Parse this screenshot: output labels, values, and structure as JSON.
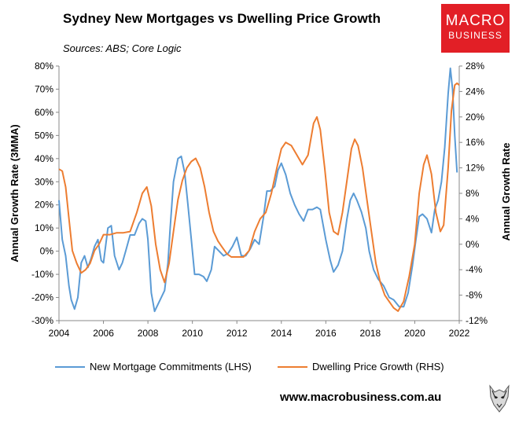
{
  "header": {
    "title": "Sydney New Mortgages vs Dwelling Price Growth",
    "subtitle": "Sources: ABS; Core Logic"
  },
  "logo": {
    "line1": "MACRO",
    "line2": "BUSINESS",
    "color": "#e21f26"
  },
  "footer": {
    "url": "www.macrobusiness.com.au"
  },
  "colors": {
    "mortgage": "#5b9bd5",
    "price": "#ed7d31"
  },
  "chart_data": {
    "type": "line",
    "ylabel_left": "Annual Growth Rate (3MMA)",
    "ylabel_right": "Annual Growth Rate",
    "grid": false,
    "legend_placement": "bottom",
    "xlim": [
      2004,
      2022
    ],
    "x_ticks": [
      "2004",
      "2006",
      "2008",
      "2010",
      "2012",
      "2014",
      "2016",
      "2018",
      "2020",
      "2022"
    ],
    "ylim_left": [
      -30,
      80
    ],
    "ylim_right": [
      -12,
      28
    ],
    "y_ticks_left": [
      "80%",
      "70%",
      "60%",
      "50%",
      "40%",
      "30%",
      "20%",
      "10%",
      "0%",
      "-10%",
      "-20%",
      "-30%"
    ],
    "y_ticks_right": [
      "28%",
      "24%",
      "20%",
      "16%",
      "12%",
      "8%",
      "4%",
      "0%",
      "-4%",
      "-8%",
      "-12%"
    ],
    "series": [
      {
        "name": "New Mortgage Commitments (LHS)",
        "axis": "left",
        "points": [
          [
            2004.0,
            22
          ],
          [
            2004.15,
            5
          ],
          [
            2004.3,
            -2
          ],
          [
            2004.45,
            -15
          ],
          [
            2004.55,
            -21
          ],
          [
            2004.7,
            -25
          ],
          [
            2004.85,
            -20
          ],
          [
            2005.0,
            -5
          ],
          [
            2005.15,
            -2
          ],
          [
            2005.3,
            -7
          ],
          [
            2005.45,
            -3
          ],
          [
            2005.6,
            2
          ],
          [
            2005.75,
            5
          ],
          [
            2005.9,
            -4
          ],
          [
            2006.0,
            -5
          ],
          [
            2006.2,
            10
          ],
          [
            2006.35,
            11
          ],
          [
            2006.5,
            -2
          ],
          [
            2006.7,
            -8
          ],
          [
            2006.85,
            -5
          ],
          [
            2007.0,
            0
          ],
          [
            2007.2,
            7
          ],
          [
            2007.4,
            7
          ],
          [
            2007.6,
            12
          ],
          [
            2007.75,
            14
          ],
          [
            2007.9,
            13
          ],
          [
            2008.0,
            5
          ],
          [
            2008.15,
            -18
          ],
          [
            2008.3,
            -26
          ],
          [
            2008.45,
            -23
          ],
          [
            2008.6,
            -20
          ],
          [
            2008.75,
            -17
          ],
          [
            2008.9,
            -5
          ],
          [
            2009.0,
            10
          ],
          [
            2009.15,
            30
          ],
          [
            2009.35,
            40
          ],
          [
            2009.5,
            41
          ],
          [
            2009.65,
            34
          ],
          [
            2009.8,
            20
          ],
          [
            2009.95,
            5
          ],
          [
            2010.1,
            -10
          ],
          [
            2010.3,
            -10
          ],
          [
            2010.5,
            -11
          ],
          [
            2010.65,
            -13
          ],
          [
            2010.85,
            -8
          ],
          [
            2011.0,
            2
          ],
          [
            2011.2,
            0
          ],
          [
            2011.4,
            -2
          ],
          [
            2011.6,
            -1
          ],
          [
            2011.8,
            2
          ],
          [
            2012.0,
            6
          ],
          [
            2012.2,
            -2
          ],
          [
            2012.4,
            -2
          ],
          [
            2012.6,
            1
          ],
          [
            2012.8,
            5
          ],
          [
            2013.0,
            3
          ],
          [
            2013.2,
            15
          ],
          [
            2013.35,
            26
          ],
          [
            2013.5,
            26
          ],
          [
            2013.7,
            28
          ],
          [
            2013.85,
            35
          ],
          [
            2014.0,
            38
          ],
          [
            2014.2,
            33
          ],
          [
            2014.4,
            25
          ],
          [
            2014.6,
            20
          ],
          [
            2014.8,
            16
          ],
          [
            2015.0,
            13
          ],
          [
            2015.2,
            18
          ],
          [
            2015.4,
            18
          ],
          [
            2015.6,
            19
          ],
          [
            2015.75,
            18
          ],
          [
            2016.0,
            5
          ],
          [
            2016.2,
            -4
          ],
          [
            2016.35,
            -9
          ],
          [
            2016.55,
            -6
          ],
          [
            2016.75,
            0
          ],
          [
            2016.95,
            14
          ],
          [
            2017.1,
            22
          ],
          [
            2017.25,
            25
          ],
          [
            2017.4,
            22
          ],
          [
            2017.6,
            17
          ],
          [
            2017.8,
            10
          ],
          [
            2017.95,
            0
          ],
          [
            2018.15,
            -8
          ],
          [
            2018.35,
            -12
          ],
          [
            2018.6,
            -15
          ],
          [
            2018.85,
            -20
          ],
          [
            2019.05,
            -21
          ],
          [
            2019.3,
            -24
          ],
          [
            2019.5,
            -24
          ],
          [
            2019.7,
            -18
          ],
          [
            2019.9,
            -6
          ],
          [
            2020.05,
            5
          ],
          [
            2020.2,
            15
          ],
          [
            2020.35,
            16
          ],
          [
            2020.55,
            14
          ],
          [
            2020.75,
            8
          ],
          [
            2020.9,
            18
          ],
          [
            2021.05,
            22
          ],
          [
            2021.2,
            30
          ],
          [
            2021.35,
            45
          ],
          [
            2021.5,
            68
          ],
          [
            2021.6,
            79
          ],
          [
            2021.7,
            70
          ],
          [
            2021.8,
            50
          ],
          [
            2021.9,
            34
          ]
        ]
      },
      {
        "name": "Dwelling Price Growth (RHS)",
        "axis": "right",
        "points": [
          [
            2004.0,
            11.8
          ],
          [
            2004.15,
            11.5
          ],
          [
            2004.3,
            9
          ],
          [
            2004.45,
            4
          ],
          [
            2004.6,
            -1
          ],
          [
            2004.8,
            -3
          ],
          [
            2005.0,
            -4.5
          ],
          [
            2005.2,
            -4
          ],
          [
            2005.4,
            -3
          ],
          [
            2005.6,
            -1
          ],
          [
            2005.8,
            0
          ],
          [
            2006.0,
            1.5
          ],
          [
            2006.3,
            1.5
          ],
          [
            2006.6,
            1.8
          ],
          [
            2006.9,
            1.8
          ],
          [
            2007.2,
            2
          ],
          [
            2007.5,
            5
          ],
          [
            2007.75,
            8
          ],
          [
            2007.95,
            9
          ],
          [
            2008.15,
            6
          ],
          [
            2008.35,
            0
          ],
          [
            2008.55,
            -4
          ],
          [
            2008.75,
            -6
          ],
          [
            2008.95,
            -3
          ],
          [
            2009.15,
            2
          ],
          [
            2009.35,
            7
          ],
          [
            2009.55,
            10
          ],
          [
            2009.75,
            12
          ],
          [
            2009.95,
            13
          ],
          [
            2010.15,
            13.5
          ],
          [
            2010.35,
            12
          ],
          [
            2010.55,
            9
          ],
          [
            2010.75,
            5
          ],
          [
            2010.95,
            2
          ],
          [
            2011.15,
            0.5
          ],
          [
            2011.35,
            -0.5
          ],
          [
            2011.55,
            -1.5
          ],
          [
            2011.75,
            -2
          ],
          [
            2012.0,
            -2
          ],
          [
            2012.3,
            -2
          ],
          [
            2012.55,
            -1
          ],
          [
            2012.8,
            2
          ],
          [
            2013.05,
            4
          ],
          [
            2013.3,
            5
          ],
          [
            2013.55,
            8
          ],
          [
            2013.8,
            12
          ],
          [
            2014.0,
            15
          ],
          [
            2014.2,
            16
          ],
          [
            2014.45,
            15.5
          ],
          [
            2014.7,
            14
          ],
          [
            2014.95,
            12.5
          ],
          [
            2015.2,
            14
          ],
          [
            2015.45,
            19
          ],
          [
            2015.6,
            20
          ],
          [
            2015.75,
            18
          ],
          [
            2015.95,
            12
          ],
          [
            2016.15,
            5
          ],
          [
            2016.35,
            2
          ],
          [
            2016.55,
            1.5
          ],
          [
            2016.75,
            5
          ],
          [
            2016.95,
            10
          ],
          [
            2017.15,
            15
          ],
          [
            2017.3,
            16.5
          ],
          [
            2017.45,
            15.5
          ],
          [
            2017.65,
            12
          ],
          [
            2017.85,
            7
          ],
          [
            2018.05,
            2
          ],
          [
            2018.25,
            -3
          ],
          [
            2018.45,
            -6
          ],
          [
            2018.65,
            -8
          ],
          [
            2018.85,
            -9
          ],
          [
            2019.05,
            -10
          ],
          [
            2019.25,
            -10.5
          ],
          [
            2019.5,
            -9
          ],
          [
            2019.75,
            -5
          ],
          [
            2020.0,
            0
          ],
          [
            2020.2,
            8
          ],
          [
            2020.4,
            12.5
          ],
          [
            2020.55,
            14
          ],
          [
            2020.75,
            11
          ],
          [
            2020.95,
            5
          ],
          [
            2021.15,
            2
          ],
          [
            2021.3,
            3
          ],
          [
            2021.5,
            12
          ],
          [
            2021.65,
            21
          ],
          [
            2021.8,
            25
          ],
          [
            2021.9,
            25.3
          ],
          [
            2022.0,
            25
          ]
        ]
      }
    ]
  }
}
